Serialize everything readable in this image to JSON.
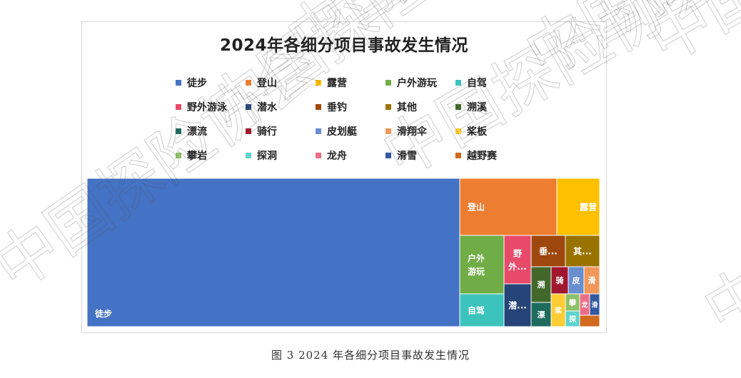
{
  "chart_data": {
    "type": "treemap",
    "title": "2024年各细分项目事故发生情况",
    "legend_position": "top",
    "series": [
      {
        "name": "徒步",
        "color": "#4472c4",
        "label": "徒步"
      },
      {
        "name": "登山",
        "color": "#ed7d31",
        "label": "登山"
      },
      {
        "name": "露营",
        "color": "#ffc000",
        "label": "露营"
      },
      {
        "name": "户外游玩",
        "color": "#70ad47",
        "label": "户外\n游玩"
      },
      {
        "name": "自驾",
        "color": "#3cc4bc",
        "label": "自驾"
      },
      {
        "name": "野外游泳",
        "color": "#e84a6a",
        "label": "野\n外..."
      },
      {
        "name": "潜水",
        "color": "#264478",
        "label": "潜..."
      },
      {
        "name": "垂钓",
        "color": "#9e480e",
        "label": "垂..."
      },
      {
        "name": "其他",
        "color": "#997300",
        "label": "其..."
      },
      {
        "name": "溯溪",
        "color": "#43682b",
        "label": "溯"
      },
      {
        "name": "漂流",
        "color": "#1f6b5e",
        "label": "漂"
      },
      {
        "name": "骑行",
        "color": "#a0172f",
        "label": "骑"
      },
      {
        "name": "皮划艇",
        "color": "#698ed0",
        "label": "皮"
      },
      {
        "name": "滑翔伞",
        "color": "#f1975a",
        "label": "滑"
      },
      {
        "name": "桨板",
        "color": "#ffcd33",
        "label": "桨"
      },
      {
        "name": "攀岩",
        "color": "#8cc168",
        "label": "攀"
      },
      {
        "name": "探洞",
        "color": "#5fd3cc",
        "label": "探"
      },
      {
        "name": "龙舟",
        "color": "#ec6e88",
        "label": "龙"
      },
      {
        "name": "滑雪",
        "color": "#335aa1",
        "label": "滑"
      },
      {
        "name": "越野赛",
        "color": "#d2691e",
        "label": ""
      }
    ]
  },
  "caption": "图 3   2024 年各细分项目事故发生情况",
  "watermark_text": "中国探险协会"
}
